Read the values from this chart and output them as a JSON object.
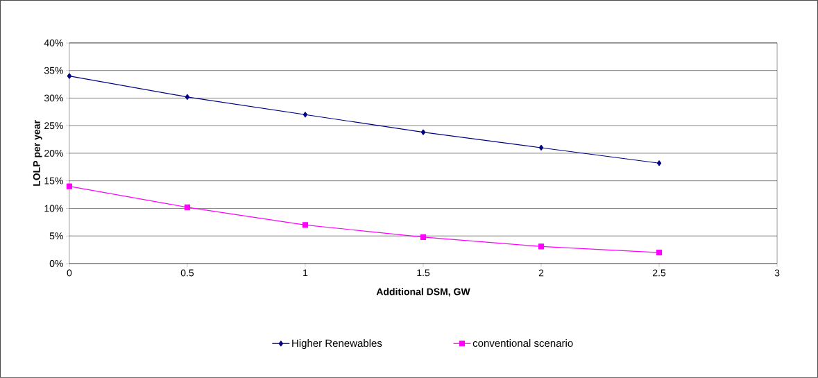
{
  "chart_data": {
    "type": "line",
    "xlabel": "Additional DSM, GW",
    "ylabel": "LOLP per year",
    "x": [
      0,
      0.5,
      1,
      1.5,
      2,
      2.5
    ],
    "series": [
      {
        "name": "Higher Renewables",
        "color": "#000080",
        "marker": "diamond",
        "values": [
          34,
          30.2,
          27,
          23.8,
          21,
          18.2
        ]
      },
      {
        "name": "conventional scenario",
        "color": "#ff00ff",
        "marker": "square",
        "values": [
          14,
          10.2,
          7,
          4.8,
          3.1,
          2
        ]
      }
    ],
    "xlim": [
      0,
      3
    ],
    "xticks": [
      0,
      0.5,
      1,
      1.5,
      2,
      2.5,
      3
    ],
    "ylim": [
      0,
      40
    ],
    "yticks": [
      {
        "value": 0,
        "label": "0%"
      },
      {
        "value": 5,
        "label": "5%"
      },
      {
        "value": 10,
        "label": "10%"
      },
      {
        "value": 15,
        "label": "15%"
      },
      {
        "value": 20,
        "label": "20%"
      },
      {
        "value": 25,
        "label": "25%"
      },
      {
        "value": 30,
        "label": "30%"
      },
      {
        "value": 35,
        "label": "35%"
      },
      {
        "value": 40,
        "label": "40%"
      }
    ],
    "grid": "y",
    "legend": "bottom",
    "line_style": "solid"
  }
}
